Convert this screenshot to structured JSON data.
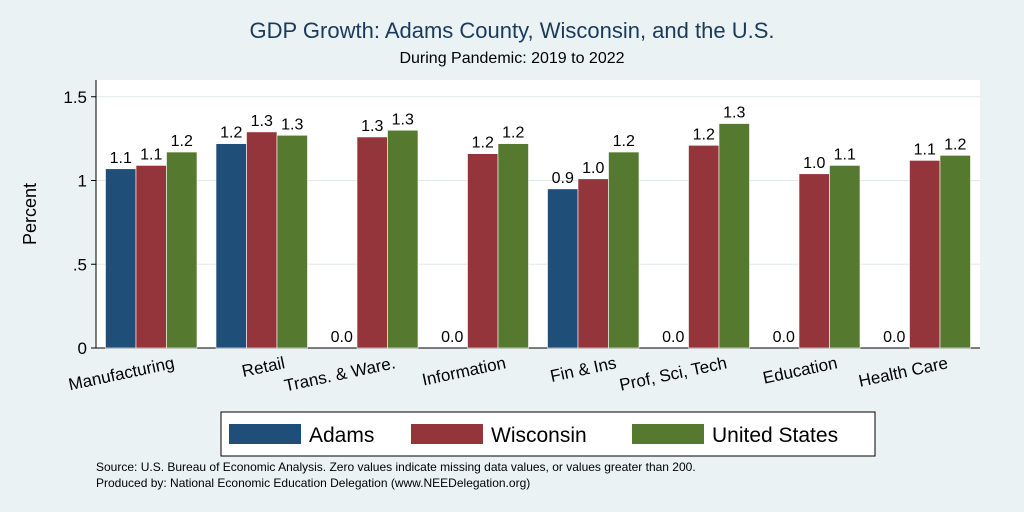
{
  "title": "GDP Growth: Adams County, Wisconsin, and the U.S.",
  "subtitle": "During Pandemic: 2019 to 2022",
  "source_note": "Source: U.S. Bureau of Economic Analysis. Zero values indicate missing data values, or values greater than 200.",
  "produced_note": "Produced by: National Economic Education Delegation (www.NEEDelegation.org)",
  "colors": {
    "adams": "#1f4e79",
    "wisconsin": "#93353b",
    "us": "#55792f",
    "background": "#eaf2f3",
    "plot_bg": "#ffffff"
  },
  "chart_data": {
    "type": "bar",
    "ylabel": "Percent",
    "xlabel": "",
    "ylim": [
      0,
      1.6
    ],
    "yticks": [
      0,
      0.5,
      1,
      1.5
    ],
    "ytick_labels": [
      "0",
      ".5",
      "1",
      "1.5"
    ],
    "grid": true,
    "legend_position": "bottom",
    "categories": [
      "Manufacturing",
      "Retail",
      "Trans. & Ware.",
      "Information",
      "Fin & Ins",
      "Prof, Sci, Tech",
      "Education",
      "Health Care"
    ],
    "series": [
      {
        "name": "Adams",
        "values": [
          1.07,
          1.22,
          0,
          0,
          0.95,
          0,
          0,
          0
        ],
        "labels": [
          "1.1",
          "1.2",
          "0.0",
          "0.0",
          "0.9",
          "0.0",
          "0.0",
          "0.0"
        ]
      },
      {
        "name": "Wisconsin",
        "values": [
          1.09,
          1.29,
          1.26,
          1.16,
          1.01,
          1.21,
          1.04,
          1.12
        ],
        "labels": [
          "1.1",
          "1.3",
          "1.3",
          "1.2",
          "1.0",
          "1.2",
          "1.0",
          "1.1"
        ]
      },
      {
        "name": "United States",
        "values": [
          1.17,
          1.27,
          1.3,
          1.22,
          1.17,
          1.34,
          1.09,
          1.15
        ],
        "labels": [
          "1.2",
          "1.3",
          "1.3",
          "1.2",
          "1.2",
          "1.3",
          "1.1",
          "1.2"
        ]
      }
    ]
  }
}
